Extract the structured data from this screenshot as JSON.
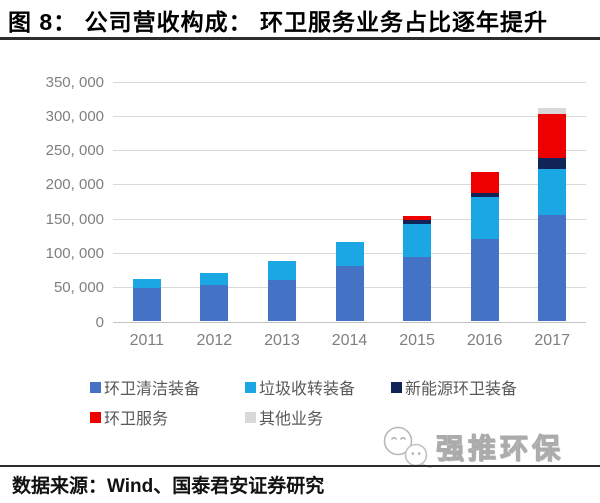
{
  "title": "图 8：  公司营收构成：  环卫服务业务占比逐年提升",
  "source_label": "数据来源：Wind、国泰君安证券研究",
  "watermark": {
    "text": "强推环保",
    "icon": "chat-bubbles-icon"
  },
  "colors": {
    "grid": "#D9D9D9",
    "axis": "#C2C2C2",
    "tick_text": "#7F7F7F",
    "legend_text": "#595959",
    "rule": "#2D2D2D",
    "background": "#FFFFFF"
  },
  "chart_data": {
    "type": "bar",
    "stacked": true,
    "title": "公司营收构成：环卫服务业务占比逐年提升",
    "categories": [
      "2011",
      "2012",
      "2013",
      "2014",
      "2015",
      "2016",
      "2017"
    ],
    "series": [
      {
        "name": "环卫清洁装备",
        "color": "#4472C4",
        "values": [
          49000,
          53000,
          61000,
          81000,
          94000,
          120000,
          156000
        ]
      },
      {
        "name": "垃圾收转装备",
        "color": "#1BA7E3",
        "values": [
          13000,
          18000,
          27000,
          35000,
          48000,
          62000,
          67000
        ]
      },
      {
        "name": "新能源环卫装备",
        "color": "#102458",
        "values": [
          0,
          0,
          0,
          0,
          6000,
          6000,
          16000
        ]
      },
      {
        "name": "环卫服务",
        "color": "#EE0000",
        "values": [
          0,
          0,
          0,
          0,
          6000,
          30000,
          64000
        ]
      },
      {
        "name": "其他业务",
        "color": "#D9D9D9",
        "values": [
          0,
          0,
          0,
          0,
          0,
          0,
          9000
        ]
      }
    ],
    "ylim": [
      0,
      350000
    ],
    "ytick_step": 50000,
    "ytick_labels": [
      "0",
      "50, 000",
      "100, 000",
      "150, 000",
      "200, 000",
      "250, 000",
      "300, 000",
      "350, 000"
    ],
    "xlabel": "",
    "ylabel": "",
    "grid": true,
    "legend_position": "bottom"
  }
}
